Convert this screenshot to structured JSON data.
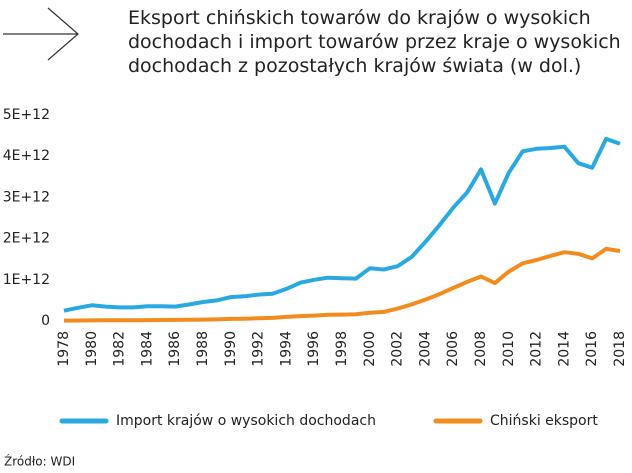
{
  "chart_data": {
    "type": "line",
    "title": "Eksport chińskich towarów do krajów o wysokich dochodach i import towarów przez kraje o wysokich dochodach z pozostałych krajów świata (w dol.)",
    "source": "Źródło: WDI",
    "x": [
      1978,
      1979,
      1980,
      1981,
      1982,
      1983,
      1984,
      1985,
      1986,
      1987,
      1988,
      1989,
      1990,
      1991,
      1992,
      1993,
      1994,
      1995,
      1996,
      1997,
      1998,
      1999,
      2000,
      2001,
      2002,
      2003,
      2004,
      2005,
      2006,
      2007,
      2008,
      2009,
      2010,
      2011,
      2012,
      2013,
      2014,
      2015,
      2016,
      2017,
      2018
    ],
    "xlim": [
      1978,
      2018
    ],
    "xticks": [
      1978,
      1980,
      1982,
      1984,
      1986,
      1988,
      1990,
      1992,
      1994,
      1996,
      1998,
      2000,
      2002,
      2004,
      2006,
      2008,
      2010,
      2012,
      2014,
      2016,
      2018
    ],
    "ylim": [
      0,
      5000000000000.0
    ],
    "yticks": [
      0,
      {
        "value": 1000000000000.0,
        "label": "1E+12"
      },
      {
        "value": 2000000000000.0,
        "label": "2E+12"
      },
      {
        "value": 3000000000000.0,
        "label": "3E+12"
      },
      {
        "value": 4000000000000.0,
        "label": "4E+12"
      },
      {
        "value": 5000000000000.0,
        "label": "5E+12"
      }
    ],
    "grid": false,
    "legend": "bottom",
    "series": [
      {
        "name": "Import krajów o wysokich dochodach",
        "color": "#29a9e0",
        "values": [
          250000000000.0,
          320000000000.0,
          380000000000.0,
          350000000000.0,
          330000000000.0,
          330000000000.0,
          360000000000.0,
          360000000000.0,
          350000000000.0,
          400000000000.0,
          460000000000.0,
          500000000000.0,
          580000000000.0,
          600000000000.0,
          640000000000.0,
          660000000000.0,
          780000000000.0,
          930000000000.0,
          1000000000000.0,
          1050000000000.0,
          1040000000000.0,
          1030000000000.0,
          1280000000000.0,
          1250000000000.0,
          1330000000000.0,
          1550000000000.0,
          1920000000000.0,
          2320000000000.0,
          2750000000000.0,
          3120000000000.0,
          3680000000000.0,
          2850000000000.0,
          3600000000000.0,
          4120000000000.0,
          4180000000000.0,
          4200000000000.0,
          4230000000000.0,
          3830000000000.0,
          3720000000000.0,
          4420000000000.0,
          4300000000000.0
        ]
      },
      {
        "name": "Chiński eksport",
        "color": "#f28c1e",
        "values": [
          10000000000.0,
          12000000000.0,
          15000000000.0,
          16000000000.0,
          17000000000.0,
          19000000000.0,
          22000000000.0,
          24000000000.0,
          26000000000.0,
          30000000000.0,
          35000000000.0,
          40000000000.0,
          50000000000.0,
          55000000000.0,
          65000000000.0,
          75000000000.0,
          100000000000.0,
          120000000000.0,
          130000000000.0,
          150000000000.0,
          155000000000.0,
          165000000000.0,
          200000000000.0,
          220000000000.0,
          300000000000.0,
          400000000000.0,
          520000000000.0,
          650000000000.0,
          800000000000.0,
          950000000000.0,
          1080000000000.0,
          920000000000.0,
          1200000000000.0,
          1400000000000.0,
          1480000000000.0,
          1580000000000.0,
          1670000000000.0,
          1630000000000.0,
          1520000000000.0,
          1750000000000.0,
          1700000000000.0
        ]
      }
    ]
  }
}
